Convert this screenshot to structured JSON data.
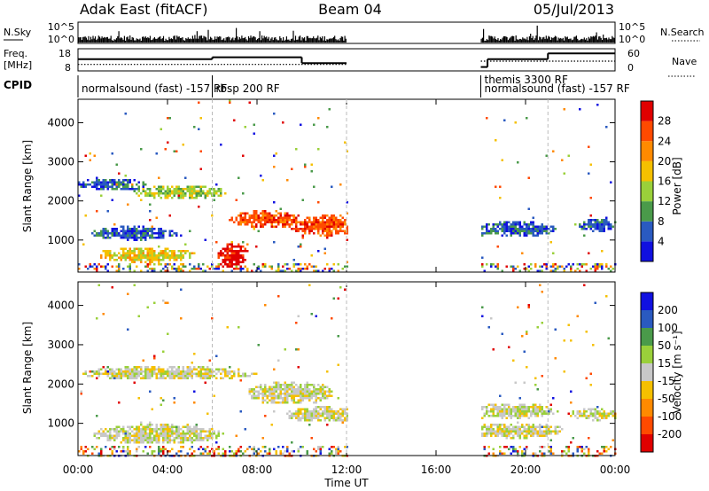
{
  "header": {
    "title": "Adak East (fitACF)",
    "beam": "Beam 04",
    "date": "05/Jul/2013"
  },
  "chart_data": [
    {
      "type": "bar",
      "panel": "noise",
      "left_label": "N.Sky",
      "right_label": "N.Search",
      "y_ticks_left": [
        "10^5",
        "10^0"
      ],
      "y_ticks_right": [
        "10^5",
        "10^0"
      ],
      "segments_hours": [
        [
          0,
          12
        ],
        [
          18,
          24
        ]
      ],
      "legend_dotted": "N.Search"
    },
    {
      "type": "line",
      "panel": "frequency",
      "left_label_1": "Freq.",
      "left_label_2": "[MHz]",
      "right_label": "Nave",
      "y_ticks_left": [
        "18",
        "8"
      ],
      "y_ticks_right": [
        "60",
        "0"
      ],
      "freq_steps": [
        {
          "x0": 0,
          "x1": 6,
          "y": 14
        },
        {
          "x0": 6,
          "x1": 10,
          "y": 15
        },
        {
          "x0": 10,
          "x1": 12,
          "y": 12
        },
        {
          "x0": 18,
          "x1": 18.3,
          "y": 10
        },
        {
          "x0": 18.3,
          "x1": 21,
          "y": 14
        },
        {
          "x0": 21,
          "x1": 24,
          "y": 17
        }
      ],
      "nave_steps": [
        {
          "x0": 0,
          "x1": 12,
          "y": 20
        },
        {
          "x0": 18,
          "x1": 24,
          "y": 30
        }
      ]
    },
    {
      "type": "table",
      "panel": "cpid",
      "label": "CPID",
      "entries": [
        {
          "text": "normalsound (fast) -157 RF",
          "start": 0
        },
        {
          "text": "rbsp 200 RF",
          "start": 6
        },
        {
          "text": "themis 3300 RF",
          "start": 18
        },
        {
          "text": "normalsound (fast) -157 RF",
          "start": 18
        }
      ]
    },
    {
      "type": "heatmap",
      "panel": "power",
      "ylabel": "Slant Range [km]",
      "y_ticks": [
        1000,
        2000,
        3000,
        4000
      ],
      "ylim": [
        180,
        4600
      ],
      "colorbar_label": "Power [dB]",
      "colorbar_ticks": [
        "4",
        "8",
        "12",
        "16",
        "20",
        "24",
        "28"
      ],
      "colorbar_colors": [
        "#1010e0",
        "#2a5ac0",
        "#4a9a4a",
        "#9ad03a",
        "#f5c000",
        "#ff8a00",
        "#ff4a00",
        "#e00000"
      ],
      "blobs": [
        {
          "t": 1.5,
          "r": 2450,
          "dt": 1.6,
          "dr": 160,
          "lvl": 1
        },
        {
          "t": 4.5,
          "r": 2250,
          "dt": 2.2,
          "dr": 170,
          "lvl": 3
        },
        {
          "t": 2.5,
          "r": 1200,
          "dt": 2.0,
          "dr": 180,
          "lvl": 1
        },
        {
          "t": 3.0,
          "r": 650,
          "dt": 2.2,
          "dr": 200,
          "lvl": 4
        },
        {
          "t": 6.9,
          "r": 600,
          "dt": 0.7,
          "dr": 350,
          "lvl": 7
        },
        {
          "t": 8.3,
          "r": 1550,
          "dt": 1.7,
          "dr": 230,
          "lvl": 6
        },
        {
          "t": 11.0,
          "r": 1400,
          "dt": 1.8,
          "dr": 260,
          "lvl": 6
        },
        {
          "t": 19.5,
          "r": 1300,
          "dt": 2.0,
          "dr": 200,
          "lvl": 1
        },
        {
          "t": 23.2,
          "r": 1400,
          "dt": 0.9,
          "dr": 160,
          "lvl": 1
        }
      ]
    },
    {
      "type": "heatmap",
      "panel": "velocity",
      "ylabel": "Slant Range [km]",
      "y_ticks": [
        1000,
        2000,
        3000,
        4000
      ],
      "ylim": [
        180,
        4600
      ],
      "xlabel": "Time UT",
      "x_ticks": [
        "00:00",
        "04:00",
        "08:00",
        "12:00",
        "16:00",
        "20:00",
        "00:00"
      ],
      "xlim": [
        0,
        24
      ],
      "colorbar_label": "Velocity [m s⁻¹]",
      "colorbar_ticks": [
        "200",
        "100",
        "50",
        "15",
        "-15",
        "-50",
        "-100",
        "-200"
      ],
      "colorbar_colors": [
        "#1010e0",
        "#2a5ac0",
        "#4a9a4a",
        "#9ad03a",
        "#c8c8c8",
        "#f5c000",
        "#ff8a00",
        "#ff4a00",
        "#e00000"
      ],
      "blobs": [
        {
          "t": 4.0,
          "r": 2300,
          "dt": 4.0,
          "dr": 180,
          "lvl": 4
        },
        {
          "t": 9.5,
          "r": 1800,
          "dt": 2.0,
          "dr": 300,
          "lvl": 4
        },
        {
          "t": 3.5,
          "r": 750,
          "dt": 3.0,
          "dr": 250,
          "lvl": 4
        },
        {
          "t": 11.0,
          "r": 1250,
          "dt": 1.8,
          "dr": 200,
          "lvl": 4
        },
        {
          "t": 19.5,
          "r": 1350,
          "dt": 2.0,
          "dr": 200,
          "lvl": 4
        },
        {
          "t": 19.5,
          "r": 850,
          "dt": 2.2,
          "dr": 200,
          "lvl": 4
        },
        {
          "t": 23.0,
          "r": 1250,
          "dt": 1.2,
          "dr": 150,
          "lvl": 4
        }
      ]
    }
  ]
}
